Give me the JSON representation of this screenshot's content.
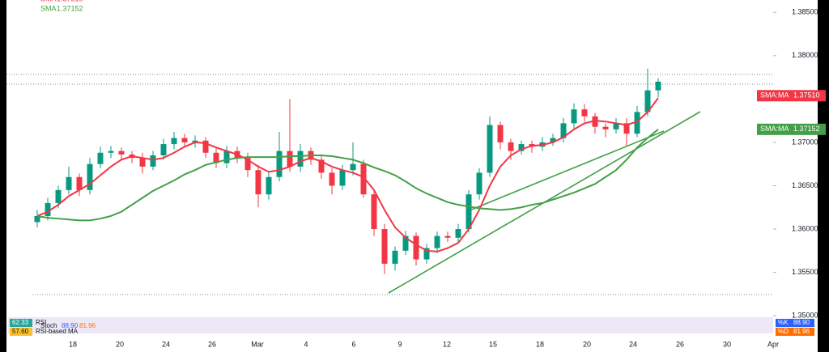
{
  "chart_data": {
    "type": "candlestick",
    "open": [
      1.3608,
      1.3615,
      1.363,
      1.3645,
      1.366,
      1.3645,
      1.3675,
      1.3688,
      1.369,
      1.3686,
      1.3682,
      1.3672,
      1.3685,
      1.3698,
      1.3705,
      1.37,
      1.3702,
      1.3688,
      1.3676,
      1.369,
      1.3682,
      1.3668,
      1.364,
      1.366,
      1.369,
      1.3672,
      1.369,
      1.368,
      1.3665,
      1.365,
      1.3668,
      1.3675,
      1.364,
      1.36,
      1.356,
      1.3575,
      1.3592,
      1.3565,
      1.3578,
      1.3592,
      1.359,
      1.36,
      1.364,
      1.3665,
      1.372,
      1.37,
      1.369,
      1.3698,
      1.3695,
      1.37,
      1.3705,
      1.3722,
      1.3738,
      1.373,
      1.3718,
      1.3715,
      1.3722,
      1.371,
      1.3735,
      1.376
    ],
    "high": [
      1.3622,
      1.3636,
      1.365,
      1.3672,
      1.3664,
      1.3682,
      1.3695,
      1.3696,
      1.3694,
      1.369,
      1.3688,
      1.369,
      1.3704,
      1.3712,
      1.371,
      1.3708,
      1.3706,
      1.3693,
      1.3696,
      1.3695,
      1.3688,
      1.3674,
      1.3666,
      1.3712,
      1.375,
      1.3698,
      1.3694,
      1.3686,
      1.367,
      1.3674,
      1.37,
      1.368,
      1.3646,
      1.3606,
      1.358,
      1.3598,
      1.3596,
      1.3583,
      1.3597,
      1.3597,
      1.3606,
      1.3645,
      1.367,
      1.373,
      1.3724,
      1.3704,
      1.3702,
      1.3702,
      1.3706,
      1.371,
      1.3728,
      1.3745,
      1.3744,
      1.3734,
      1.3722,
      1.3728,
      1.3728,
      1.3742,
      1.3785,
      1.3774
    ],
    "low": [
      1.3602,
      1.361,
      1.3624,
      1.364,
      1.3638,
      1.364,
      1.367,
      1.3682,
      1.368,
      1.3676,
      1.3664,
      1.3668,
      1.368,
      1.3692,
      1.3694,
      1.3694,
      1.3682,
      1.367,
      1.367,
      1.3676,
      1.366,
      1.3625,
      1.3634,
      1.3655,
      1.3666,
      1.3666,
      1.3674,
      1.3658,
      1.364,
      1.3645,
      1.3662,
      1.3636,
      1.3592,
      1.3548,
      1.3552,
      1.357,
      1.3558,
      1.356,
      1.3572,
      1.3585,
      1.3585,
      1.3596,
      1.3634,
      1.366,
      1.3692,
      1.368,
      1.3686,
      1.3688,
      1.369,
      1.3696,
      1.37,
      1.3716,
      1.3724,
      1.371,
      1.3706,
      1.371,
      1.3696,
      1.3706,
      1.373,
      1.3752
    ],
    "close": [
      1.3615,
      1.363,
      1.3645,
      1.366,
      1.3645,
      1.3675,
      1.3688,
      1.369,
      1.3686,
      1.3682,
      1.3672,
      1.3685,
      1.3698,
      1.3705,
      1.37,
      1.3702,
      1.3688,
      1.3676,
      1.369,
      1.3682,
      1.3668,
      1.364,
      1.366,
      1.369,
      1.3672,
      1.369,
      1.368,
      1.3665,
      1.365,
      1.3668,
      1.3675,
      1.364,
      1.36,
      1.356,
      1.3575,
      1.3592,
      1.3565,
      1.3578,
      1.3592,
      1.359,
      1.36,
      1.364,
      1.3665,
      1.372,
      1.37,
      1.369,
      1.3698,
      1.3695,
      1.37,
      1.3705,
      1.3722,
      1.3738,
      1.373,
      1.3718,
      1.3715,
      1.3722,
      1.371,
      1.3735,
      1.376,
      1.377
    ],
    "up_color": "#089981",
    "down_color": "#f23645",
    "series": [
      {
        "name": "SMA",
        "color": "#f23645",
        "value_label": "1.37510",
        "axis_label": "SMA:MA",
        "values": [
          1.3615,
          1.362,
          1.3628,
          1.3638,
          1.3645,
          1.3652,
          1.3662,
          1.3672,
          1.368,
          1.3684,
          1.3682,
          1.368,
          1.3682,
          1.3688,
          1.3695,
          1.37,
          1.3699,
          1.3694,
          1.369,
          1.3686,
          1.368,
          1.3672,
          1.3666,
          1.3668,
          1.3672,
          1.3678,
          1.3682,
          1.3678,
          1.3672,
          1.3668,
          1.3665,
          1.366,
          1.3645,
          1.3622,
          1.3602,
          1.359,
          1.3582,
          1.3575,
          1.3574,
          1.3578,
          1.3584,
          1.36,
          1.3622,
          1.365,
          1.3672,
          1.3685,
          1.3692,
          1.3696,
          1.3697,
          1.37,
          1.3706,
          1.3715,
          1.3722,
          1.3725,
          1.3724,
          1.3722,
          1.372,
          1.3724,
          1.3735,
          1.3751
        ]
      },
      {
        "name": "SMA",
        "color": "#43a047",
        "value_label": "1.37152",
        "axis_label": "SMA:MA",
        "values": [
          1.3615,
          1.3613,
          1.3612,
          1.3611,
          1.361,
          1.361,
          1.3612,
          1.3615,
          1.362,
          1.3628,
          1.3636,
          1.3644,
          1.365,
          1.3656,
          1.3663,
          1.3668,
          1.3674,
          1.3677,
          1.368,
          1.3682,
          1.3683,
          1.3683,
          1.3683,
          1.3683,
          1.3684,
          1.3684,
          1.3685,
          1.3685,
          1.3684,
          1.3682,
          1.368,
          1.3676,
          1.3671,
          1.3667,
          1.3662,
          1.3655,
          1.3647,
          1.3641,
          1.3636,
          1.3631,
          1.3628,
          1.3626,
          1.3624,
          1.3623,
          1.3622,
          1.3623,
          1.3625,
          1.3628,
          1.363,
          1.3634,
          1.3638,
          1.3642,
          1.3647,
          1.3652,
          1.366,
          1.3668,
          1.368,
          1.3694,
          1.3705,
          1.3715
        ]
      }
    ],
    "ylim": [
      1.34955,
      1.38642
    ],
    "yticks": [
      {
        "value": 1.385,
        "label": "1.38500"
      },
      {
        "value": 1.38,
        "label": "1.38000"
      },
      {
        "value": 1.37,
        "label": "1.37000"
      },
      {
        "value": 1.365,
        "label": "1.36500"
      },
      {
        "value": 1.36,
        "label": "1.36000"
      },
      {
        "value": 1.355,
        "label": "1.35500"
      },
      {
        "value": 1.35,
        "label": "1.35000"
      }
    ],
    "date_labels": [
      "18",
      "20",
      "24",
      "26",
      "Mar",
      "4",
      "6",
      "9",
      "12",
      "15",
      "18",
      "20",
      "24",
      "26",
      "30",
      "Apr"
    ],
    "indicators": {
      "rsi_value": "62.33",
      "rsi_name": "RSI",
      "rsi_ma_value": "57.60",
      "rsi_ma_name": "RSI-based MA",
      "stoch_name": "Stoch",
      "stoch_k": "88.90",
      "stoch_d": "81.96",
      "k_label": "%K",
      "d_label": "%D"
    }
  }
}
